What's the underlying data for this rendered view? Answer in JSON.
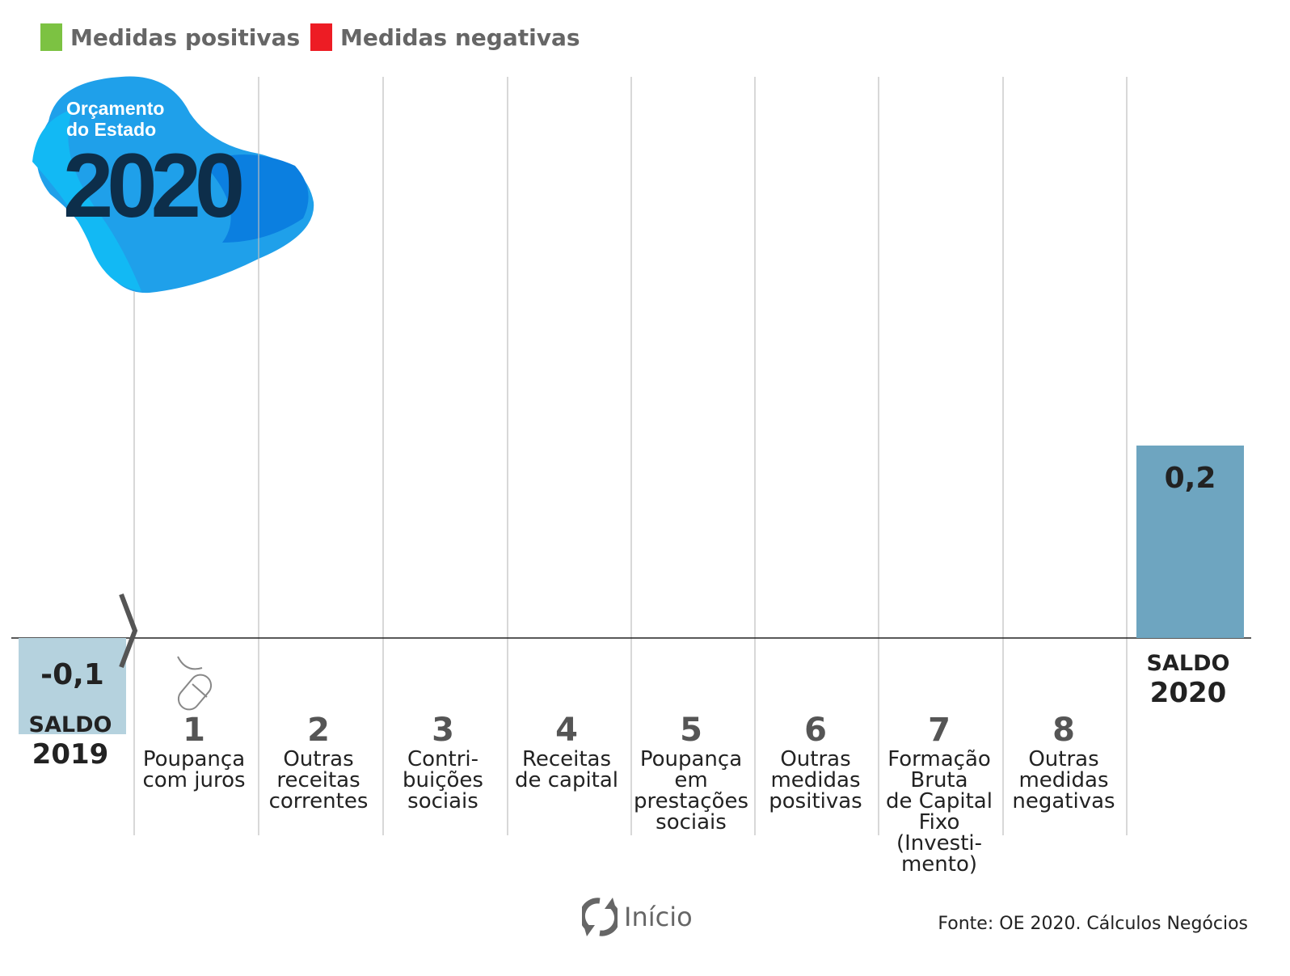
{
  "legend": [
    {
      "label": "Medidas positivas",
      "color": "#7cc242"
    },
    {
      "label": "Medidas negativas",
      "color": "#ed1c24"
    }
  ],
  "logo": {
    "line1": "Orçamento",
    "line2": "do Estado",
    "year": "2020"
  },
  "chart_data": {
    "type": "bar",
    "baseline_bars": [
      {
        "label": "SALDO 2019",
        "value": -0.1,
        "value_label": "-0,1",
        "color": "#b5d2de"
      },
      {
        "label": "SALDO 2020",
        "value": 0.2,
        "value_label": "0,2",
        "color": "#6ea5c0"
      }
    ],
    "steps": [
      {
        "num": "1",
        "label": "Poupança\ncom juros"
      },
      {
        "num": "2",
        "label": "Outras\nreceitas\ncorrentes"
      },
      {
        "num": "3",
        "label": "Contri-\nbuições\nsociais"
      },
      {
        "num": "4",
        "label": "Receitas\nde capital"
      },
      {
        "num": "5",
        "label": "Poupança\nem\nprestações\nsociais"
      },
      {
        "num": "6",
        "label": "Outras\nmedidas\npositivas"
      },
      {
        "num": "7",
        "label": "Formação\nBruta\nde Capital\nFixo\n(Investi-\nmento)"
      },
      {
        "num": "8",
        "label": "Outras\nmedidas\nnegativas"
      }
    ]
  },
  "saldo2019": {
    "t1": "SALDO",
    "t2": "2019"
  },
  "saldo2020": {
    "t1": "SALDO",
    "t2": "2020"
  },
  "controls": {
    "reset_label": "Início"
  },
  "source": "Fonte: OE 2020. Cálculos Negócios"
}
